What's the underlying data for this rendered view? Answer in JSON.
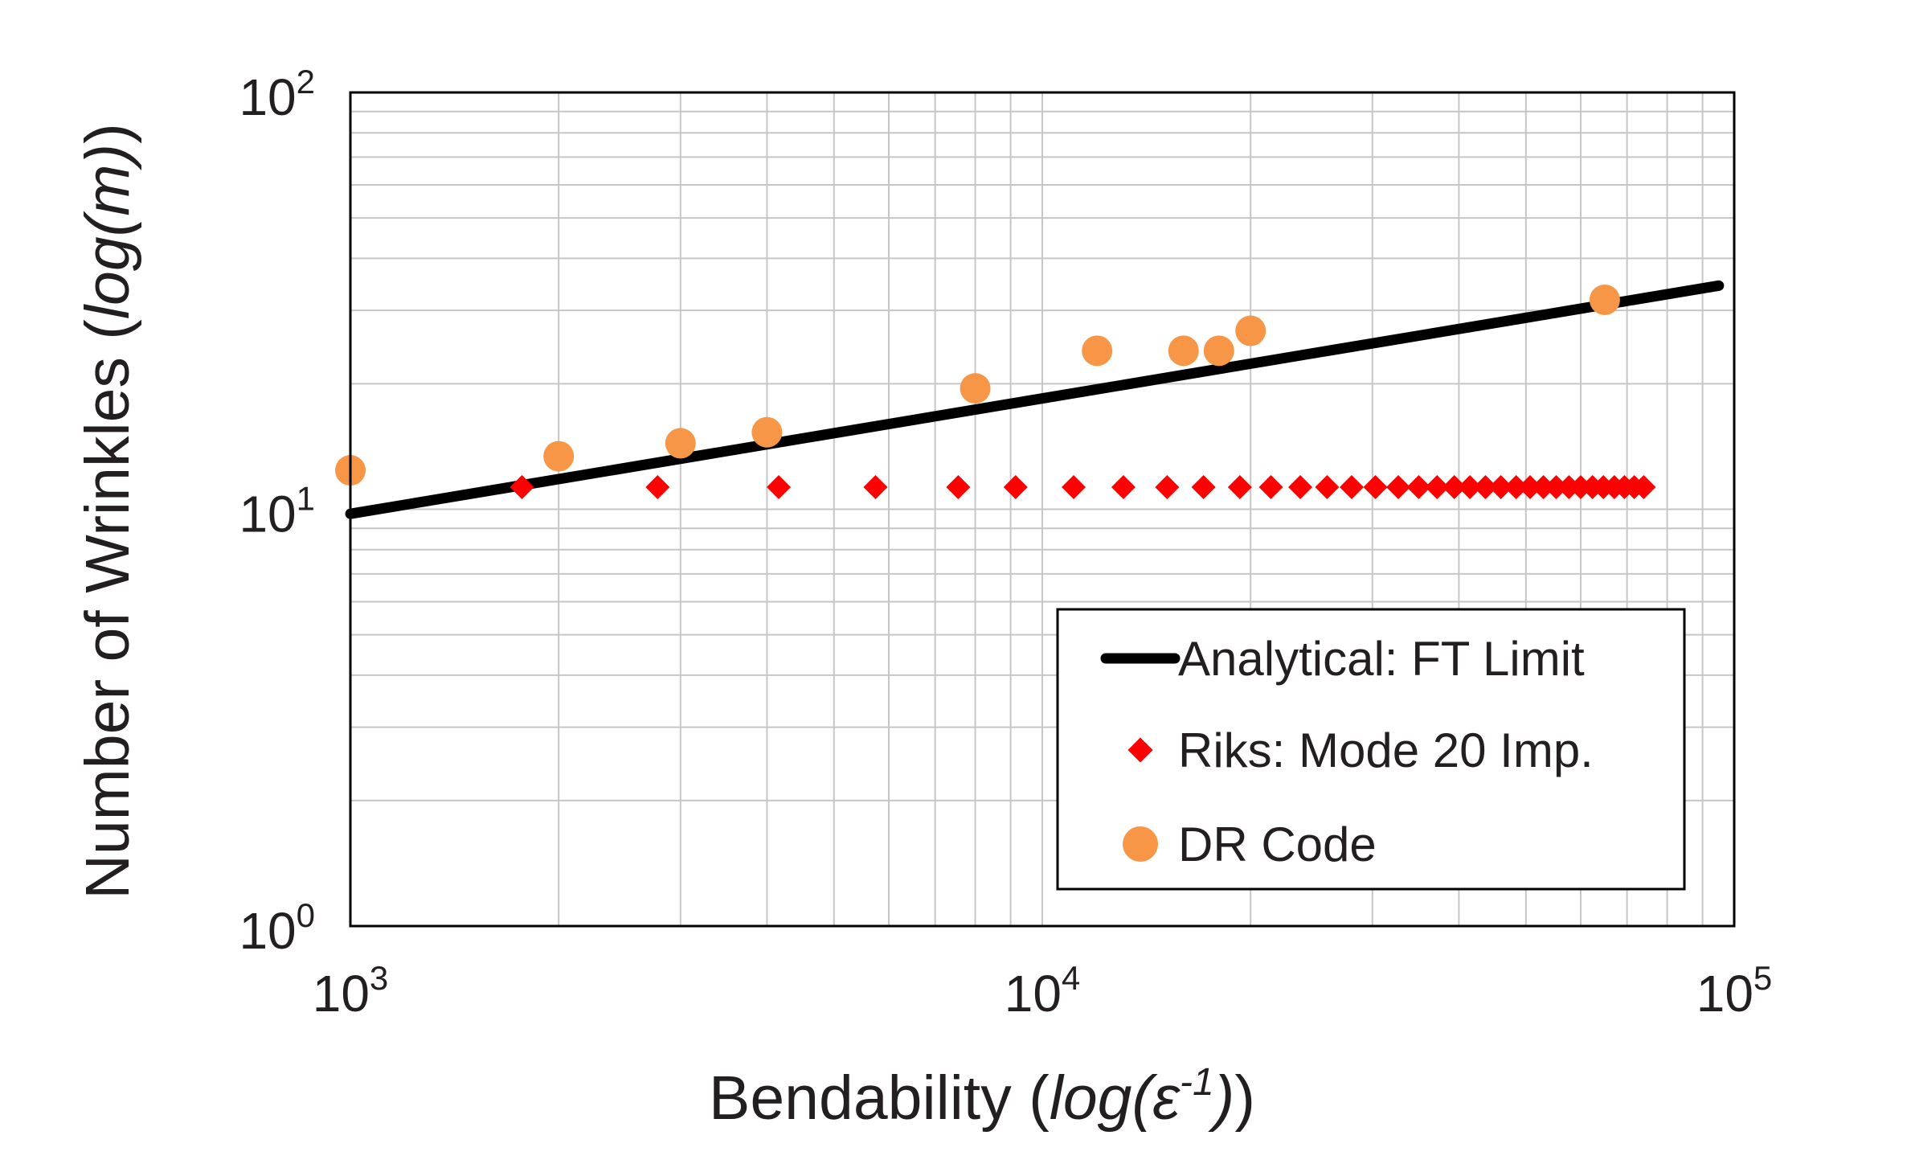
{
  "chart_data": {
    "type": "scatter",
    "xscale": "log",
    "yscale": "log",
    "xlim": [
      1000,
      100000
    ],
    "ylim": [
      1,
      100
    ],
    "grid": true,
    "legend_position": "bottom-right",
    "xlabel": {
      "prefix": "Bendability (",
      "func": "log(",
      "symbol": "ε",
      "sup": "-1",
      "close": ")",
      "suffix": ")"
    },
    "ylabel": {
      "prefix": "Number of Wrinkles (",
      "func": "log(m)",
      "suffix": ")"
    },
    "x_ticks": [
      {
        "value": 1000,
        "base": "10",
        "exp": "3"
      },
      {
        "value": 10000,
        "base": "10",
        "exp": "4"
      },
      {
        "value": 100000,
        "base": "10",
        "exp": "5"
      }
    ],
    "y_ticks": [
      {
        "value": 1,
        "base": "10",
        "exp": "0"
      },
      {
        "value": 10,
        "base": "10",
        "exp": "1"
      },
      {
        "value": 100,
        "base": "10",
        "exp": "2"
      }
    ],
    "series": [
      {
        "name": "Analytical: FT Limit",
        "kind": "line",
        "color": "#000000",
        "x": [
          1000,
          95000
        ],
        "y": [
          9.75,
          34.4
        ]
      },
      {
        "name": "Riks: Mode 20 Imp.",
        "kind": "diamond",
        "color": "#ff0000",
        "x": [
          1770,
          2780,
          4160,
          5740,
          7560,
          9150,
          11100,
          13100,
          15150,
          17100,
          19300,
          21400,
          23600,
          25800,
          28000,
          30300,
          32700,
          35000,
          37200,
          39400,
          41500,
          43700,
          46000,
          48400,
          50700,
          53000,
          55300,
          57700,
          60000,
          62400,
          64700,
          67100,
          69400,
          71700,
          74000
        ],
        "y": [
          11.3,
          11.3,
          11.3,
          11.3,
          11.3,
          11.3,
          11.3,
          11.3,
          11.3,
          11.3,
          11.3,
          11.3,
          11.3,
          11.3,
          11.3,
          11.3,
          11.3,
          11.3,
          11.3,
          11.3,
          11.3,
          11.3,
          11.3,
          11.3,
          11.3,
          11.3,
          11.3,
          11.3,
          11.3,
          11.3,
          11.3,
          11.3,
          11.3,
          11.3,
          11.3
        ]
      },
      {
        "name": "DR Code",
        "kind": "circle",
        "color": "#f79646",
        "x": [
          1000,
          2000,
          3000,
          4000,
          8000,
          12000,
          16000,
          18000,
          20000,
          65000
        ],
        "y": [
          12.4,
          13.4,
          14.4,
          15.3,
          19.5,
          24.0,
          24.0,
          24.0,
          26.8,
          31.8
        ]
      }
    ]
  }
}
